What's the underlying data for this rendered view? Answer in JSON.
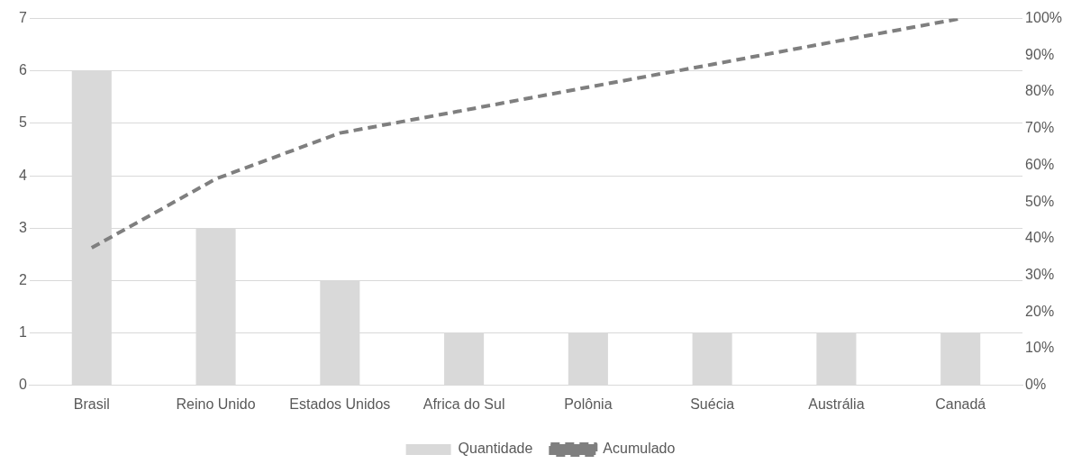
{
  "chart_data": {
    "type": "bar",
    "categories": [
      "Brasil",
      "Reino Unido",
      "Estados Unidos",
      "Africa do Sul",
      "Polônia",
      "Suécia",
      "Austrália",
      "Canadá"
    ],
    "series": [
      {
        "name": "Quantidade",
        "color": "#d9d9d9",
        "values": [
          6,
          3,
          2,
          1,
          1,
          1,
          1,
          1
        ]
      },
      {
        "name": "Acumulado",
        "type": "line",
        "axis": "y2",
        "color": "#7f7f7f",
        "line_style": "dashed",
        "marker": "none",
        "values": [
          37.5,
          56.3,
          68.8,
          75,
          81.3,
          87.5,
          93.8,
          100
        ]
      }
    ],
    "ylim": [
      0,
      7
    ],
    "yticks": [
      0,
      1,
      2,
      3,
      4,
      5,
      6,
      7
    ],
    "y2lim": [
      0,
      100
    ],
    "y2ticks": [
      {
        "value": 0,
        "label": "0%"
      },
      {
        "value": 10,
        "label": "10%"
      },
      {
        "value": 20,
        "label": "20%"
      },
      {
        "value": 30,
        "label": "30%"
      },
      {
        "value": 40,
        "label": "40%"
      },
      {
        "value": 50,
        "label": "50%"
      },
      {
        "value": 60,
        "label": "60%"
      },
      {
        "value": 70,
        "label": "70%"
      },
      {
        "value": 80,
        "label": "80%"
      },
      {
        "value": 90,
        "label": "90%"
      },
      {
        "value": 100,
        "label": "100%"
      }
    ],
    "grid": "y",
    "legend": "bottom"
  }
}
